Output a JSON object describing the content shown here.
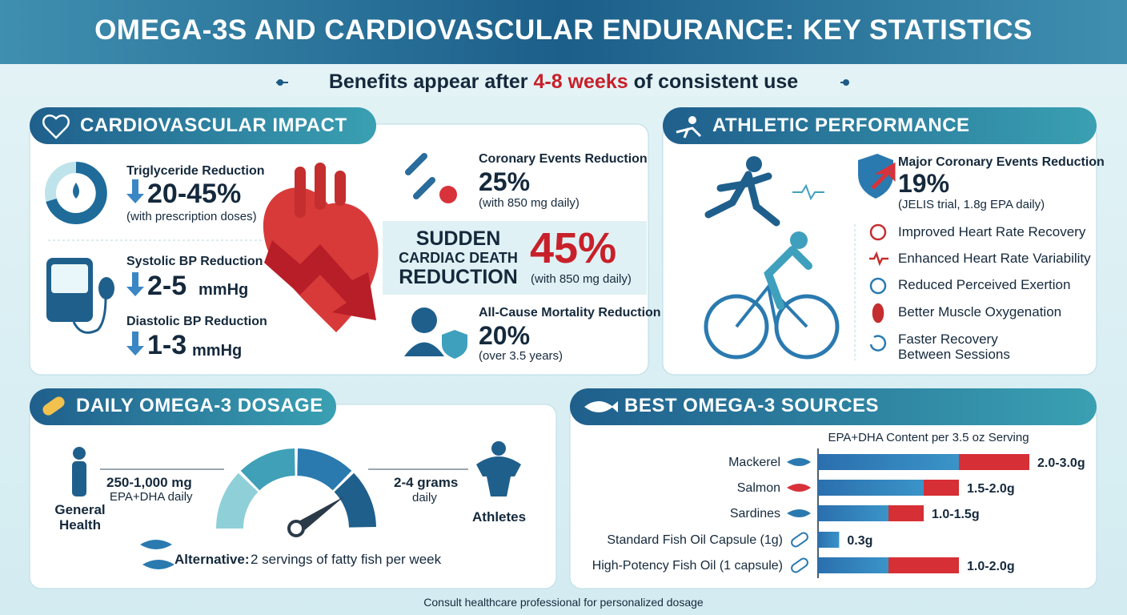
{
  "header": {
    "title": "OMEGA-3S AND CARDIOVASCULAR ENDURANCE: KEY STATISTICS"
  },
  "subtitle": {
    "before": "Benefits appear after",
    "highlight": "4-8 weeks",
    "after": "of consistent use"
  },
  "cardiovascular": {
    "title": "CARDIOVASCULAR IMPACT",
    "stats": [
      {
        "label": "Triglyceride Reduction",
        "value": "20-45%",
        "note": "(with prescription doses)"
      },
      {
        "label": "Systolic BP Reduction",
        "value": "2-5",
        "unit": "mmHg"
      },
      {
        "label": "Diastolic BP Reduction",
        "value": "1-3",
        "unit": "mmHg"
      }
    ],
    "outcomes": [
      {
        "label": "Coronary Events Reduction",
        "value": "25%",
        "note": "(with 850 mg daily)"
      },
      {
        "label": "All-Cause Mortality Reduction",
        "value": "20%",
        "note": "(over 3.5 years)"
      }
    ],
    "sudden": {
      "line1": "SUDDEN",
      "line2": "CARDIAC DEATH",
      "line3": "REDUCTION",
      "value": "45%",
      "note": "(with 850 mg daily)"
    }
  },
  "athletic": {
    "title": "ATHLETIC PERFORMANCE",
    "stat": {
      "label": "Major Coronary Events Reduction",
      "value": "19%",
      "note": "(JELIS trial, 1.8g EPA daily)"
    },
    "benefits": [
      "Improved Heart Rate Recovery",
      "Enhanced Heart Rate Variability",
      "Reduced Perceived Exertion",
      "Better Muscle Oxygenation",
      "Faster Recovery Between Sessions"
    ]
  },
  "dosage": {
    "title": "DAILY OMEGA-3 DOSAGE",
    "general": {
      "label": "General Health",
      "amount": "250-1,000 mg",
      "detail": "EPA+DHA daily"
    },
    "athletes": {
      "label": "Athletes",
      "amount": "2-4 grams",
      "detail": "daily"
    },
    "alternative": {
      "label": "Alternative:",
      "text": "2 servings of fatty fish per week"
    }
  },
  "sources": {
    "title": "BEST OMEGA-3 SOURCES",
    "chart_title": "EPA+DHA Content per 3.5 oz Serving",
    "items": [
      {
        "name": "Mackerel",
        "low": 2.0,
        "high": 3.0,
        "label": "2.0-3.0g"
      },
      {
        "name": "Salmon",
        "low": 1.5,
        "high": 2.0,
        "label": "1.5-2.0g"
      },
      {
        "name": "Sardines",
        "low": 1.0,
        "high": 1.5,
        "label": "1.0-1.5g"
      },
      {
        "name": "Standard Fish Oil Capsule (1g)",
        "value": 0.3,
        "label": "0.3g"
      },
      {
        "name": "High-Potency Fish Oil (1 capsule)",
        "low": 1.0,
        "high": 2.0,
        "label": "1.0-2.0g"
      }
    ]
  },
  "footer": {
    "note": "Consult healthcare professional for personalized dosage"
  }
}
